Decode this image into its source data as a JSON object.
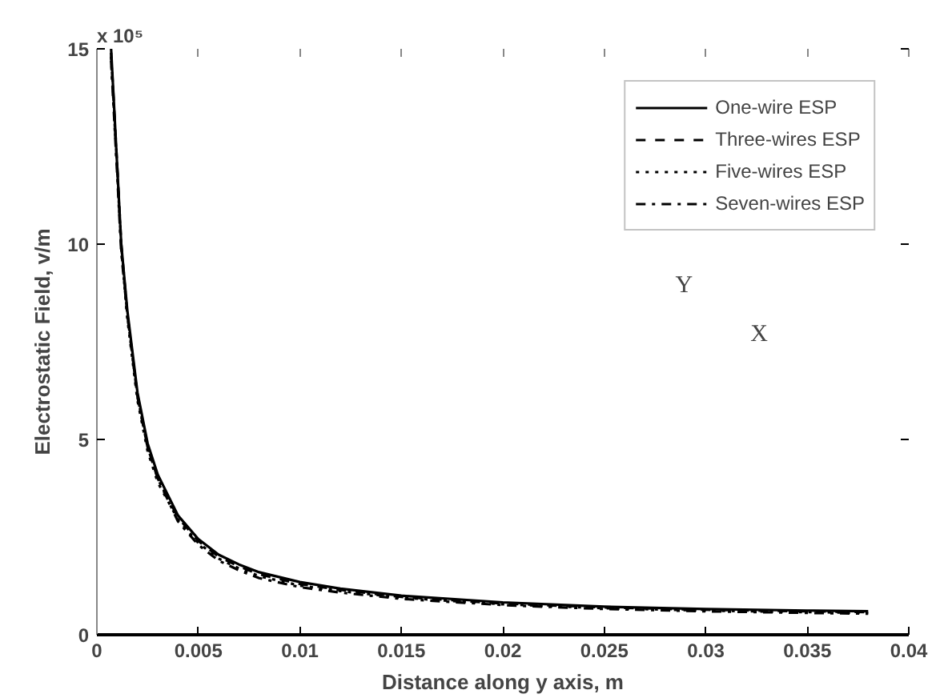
{
  "chart_data": {
    "type": "line",
    "xlabel": "Distance along y axis, m",
    "ylabel": "Electrostatic Field, v/m",
    "annotations": [
      "x 10⁵",
      "Y",
      "X"
    ],
    "x": [
      0.0007,
      0.001,
      0.0012,
      0.0015,
      0.002,
      0.0025,
      0.003,
      0.004,
      0.005,
      0.006,
      0.007,
      0.008,
      0.01,
      0.012,
      0.015,
      0.02,
      0.025,
      0.03,
      0.035,
      0.038
    ],
    "series": [
      {
        "name": "One-wire ESP",
        "color": "#000000",
        "line_style": "solid",
        "values": [
          15,
          12,
          10,
          8.3,
          6.2,
          4.9,
          4.1,
          3.05,
          2.45,
          2.05,
          1.8,
          1.6,
          1.35,
          1.18,
          1.0,
          0.83,
          0.72,
          0.66,
          0.62,
          0.6
        ]
      },
      {
        "name": "Three-wires ESP",
        "color": "#000000",
        "line_style": "dashed",
        "values": [
          14.9,
          12,
          10,
          8.2,
          6.1,
          4.8,
          4.0,
          3.0,
          2.4,
          2.0,
          1.75,
          1.55,
          1.3,
          1.15,
          0.97,
          0.8,
          0.7,
          0.64,
          0.6,
          0.58
        ]
      },
      {
        "name": "Five-wires ESP",
        "color": "#000000",
        "line_style": "dotted",
        "values": [
          14.8,
          11.9,
          9.9,
          8.1,
          6.0,
          4.7,
          3.9,
          2.95,
          2.35,
          1.95,
          1.7,
          1.5,
          1.26,
          1.12,
          0.95,
          0.78,
          0.68,
          0.62,
          0.58,
          0.56
        ]
      },
      {
        "name": "Seven-wires ESP",
        "color": "#000000",
        "line_style": "dashdot",
        "values": [
          14.7,
          11.8,
          9.8,
          8.2,
          6.1,
          4.8,
          4.0,
          2.9,
          2.3,
          1.9,
          1.65,
          1.45,
          1.22,
          1.08,
          0.92,
          0.76,
          0.66,
          0.6,
          0.56,
          0.54
        ]
      }
    ],
    "xlim": [
      0,
      0.04
    ],
    "xticks": [
      0,
      0.005,
      0.01,
      0.015,
      0.02,
      0.025,
      0.03,
      0.035,
      0.04
    ],
    "ylim": [
      0,
      15
    ],
    "yticks": [
      0,
      5,
      10,
      15
    ],
    "grid": false,
    "legend": "top right"
  }
}
